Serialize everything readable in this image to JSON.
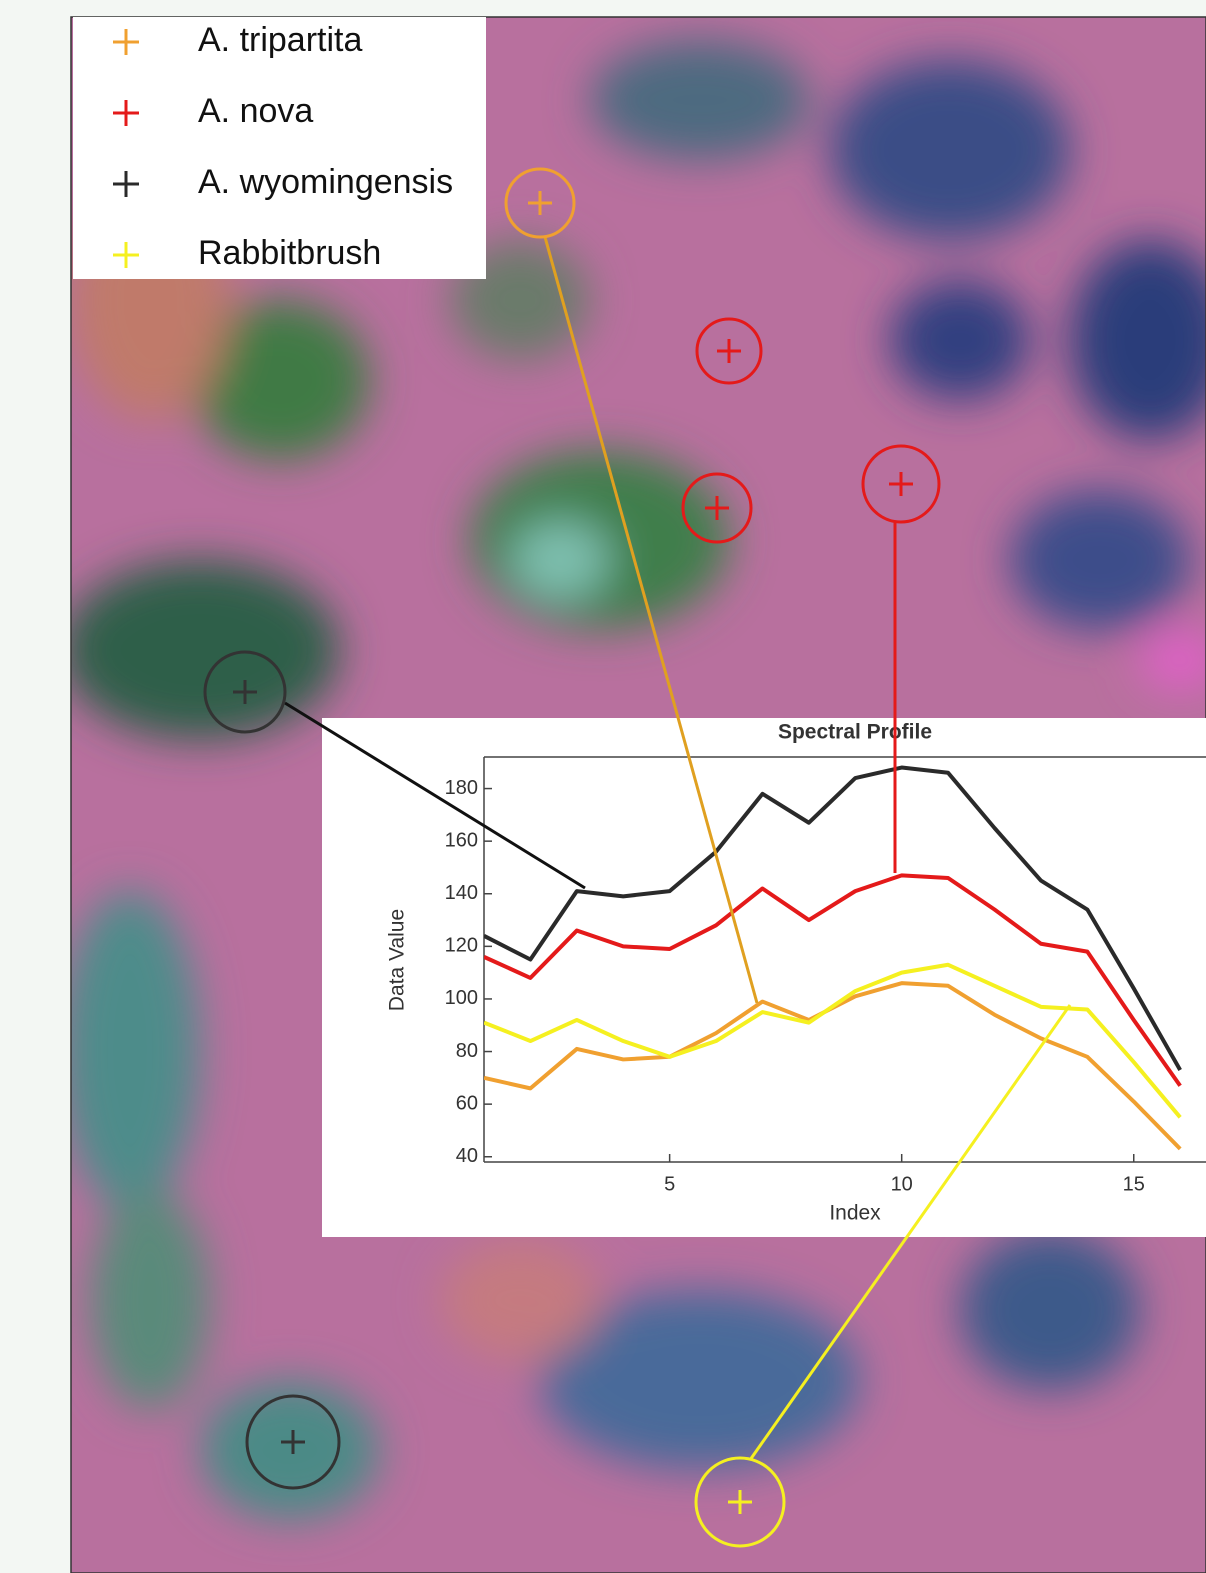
{
  "chart_data": {
    "type": "line",
    "title": "Spectral Profile",
    "x_label": "Index",
    "y_label": "Data Value",
    "x": [
      1,
      2,
      3,
      4,
      5,
      6,
      7,
      8,
      9,
      10,
      11,
      12,
      13,
      14,
      15,
      16
    ],
    "series": [
      {
        "name": "A. tripartita",
        "color": "#f0a030",
        "values": [
          70,
          66,
          81,
          77,
          78,
          87,
          99,
          92,
          101,
          106,
          105,
          94,
          85,
          78,
          61,
          43
        ]
      },
      {
        "name": "A. nova",
        "color": "#e41a1a",
        "values": [
          116,
          108,
          126,
          120,
          119,
          128,
          142,
          130,
          141,
          147,
          146,
          134,
          121,
          118,
          92,
          67
        ]
      },
      {
        "name": "A. wyomingensis",
        "color": "#2a2a2a",
        "values": [
          124,
          115,
          141,
          139,
          141,
          156,
          178,
          167,
          184,
          188,
          186,
          165,
          145,
          134,
          104,
          73
        ]
      },
      {
        "name": "Rabbitbrush",
        "color": "#f5f020",
        "values": [
          91,
          84,
          92,
          84,
          78,
          84,
          95,
          91,
          103,
          110,
          113,
          105,
          97,
          96,
          76,
          55
        ]
      }
    ],
    "xlim": [
      1,
      16.6
    ],
    "ylim": [
      38,
      192
    ],
    "xticks": [
      5,
      10,
      15
    ],
    "yticks": [
      40,
      60,
      80,
      100,
      120,
      140,
      160,
      180
    ]
  }
}
